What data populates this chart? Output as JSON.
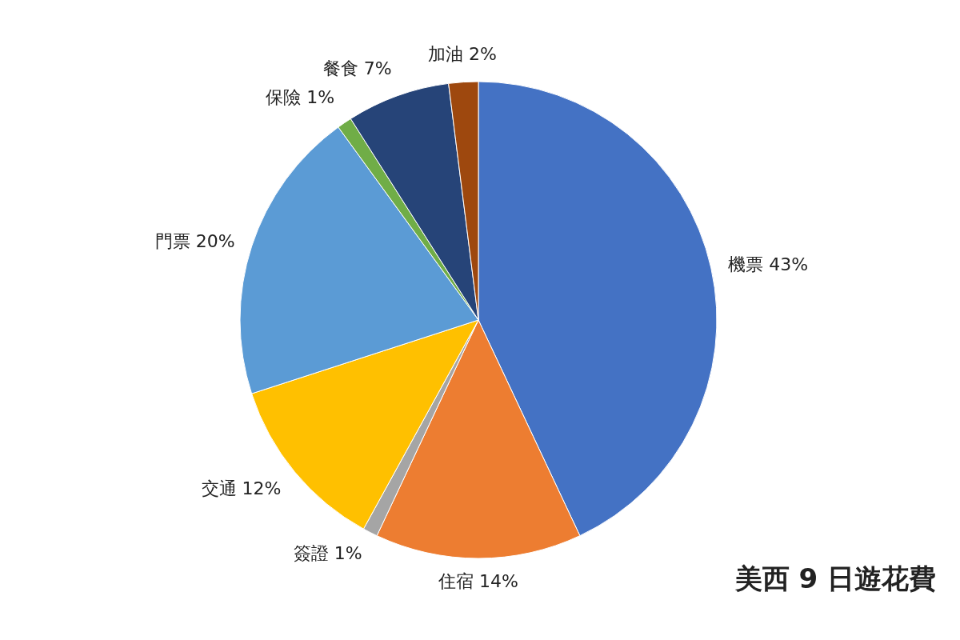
{
  "chart_data": {
    "type": "pie",
    "title": "美西 9 日遊花費",
    "categories": [
      "機票",
      "住宿",
      "簽證",
      "交通",
      "門票",
      "保險",
      "餐食",
      "加油"
    ],
    "values": [
      43,
      14,
      1,
      12,
      20,
      1,
      7,
      2
    ],
    "value_labels": [
      "43%",
      "14%",
      "1%",
      "12%",
      "20%",
      "1%",
      "7%",
      "2%"
    ],
    "colors": [
      "#4472c4",
      "#ed7d31",
      "#a5a5a5",
      "#ffc000",
      "#5b9bd5",
      "#70ad47",
      "#264478",
      "#9e480e"
    ]
  }
}
